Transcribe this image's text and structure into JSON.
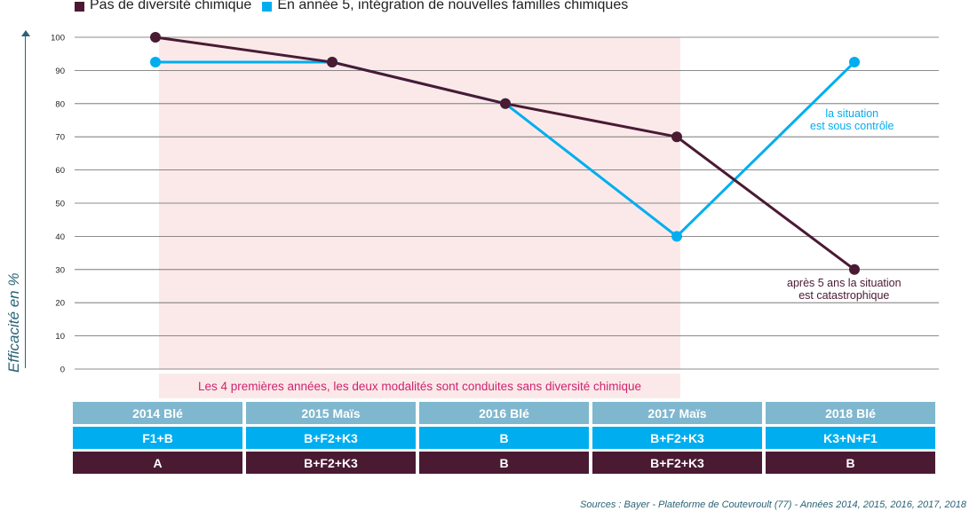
{
  "legend": [
    {
      "label": "Pas de diversité chimique",
      "color": "#4a1a33"
    },
    {
      "label": "En année 5, intégration de nouvelles familles chimiques",
      "color": "#00aeef"
    }
  ],
  "chart_data": {
    "type": "line",
    "ylabel": "Efficacité en %",
    "ylim": [
      0,
      100
    ],
    "yticks": [
      0,
      10,
      20,
      30,
      40,
      50,
      60,
      70,
      80,
      90,
      100
    ],
    "x": [
      "2014",
      "2015",
      "2016",
      "2017",
      "2018"
    ],
    "series": [
      {
        "name": "Pas de diversité chimique",
        "color": "#4a1a33",
        "values": [
          100,
          92.5,
          80,
          70,
          30
        ]
      },
      {
        "name": "En année 5, intégration de nouvelles familles chimiques",
        "color": "#00aeef",
        "values": [
          92.5,
          92.5,
          80,
          40,
          92.5
        ]
      }
    ],
    "grid": true,
    "shaded_region": {
      "from": 0,
      "to": 3,
      "color": "#fbe9e9"
    }
  },
  "annotations": {
    "blue": {
      "line1": "la situation",
      "line2": "est sous contrôle",
      "color": "#00aeef"
    },
    "dark": {
      "line1": "après 5 ans la situation",
      "line2": "est catastrophique",
      "color": "#4a1a33"
    }
  },
  "note": "Les 4 premières années, les deux modalités sont conduites sans diversité chimique",
  "table": {
    "years": [
      "2014 Blé",
      "2015 Maïs",
      "2016 Blé",
      "2017 Maïs",
      "2018 Blé"
    ],
    "blue_row": [
      "F1+B",
      "B+F2+K3",
      "B",
      "B+F2+K3",
      "K3+N+F1"
    ],
    "dark_row": [
      "A",
      "B+F2+K3",
      "B",
      "B+F2+K3",
      "B"
    ]
  },
  "source": "Sources : Bayer - Plateforme de Coutevroult (77) - Années 2014, 2015, 2016, 2017, 2018"
}
